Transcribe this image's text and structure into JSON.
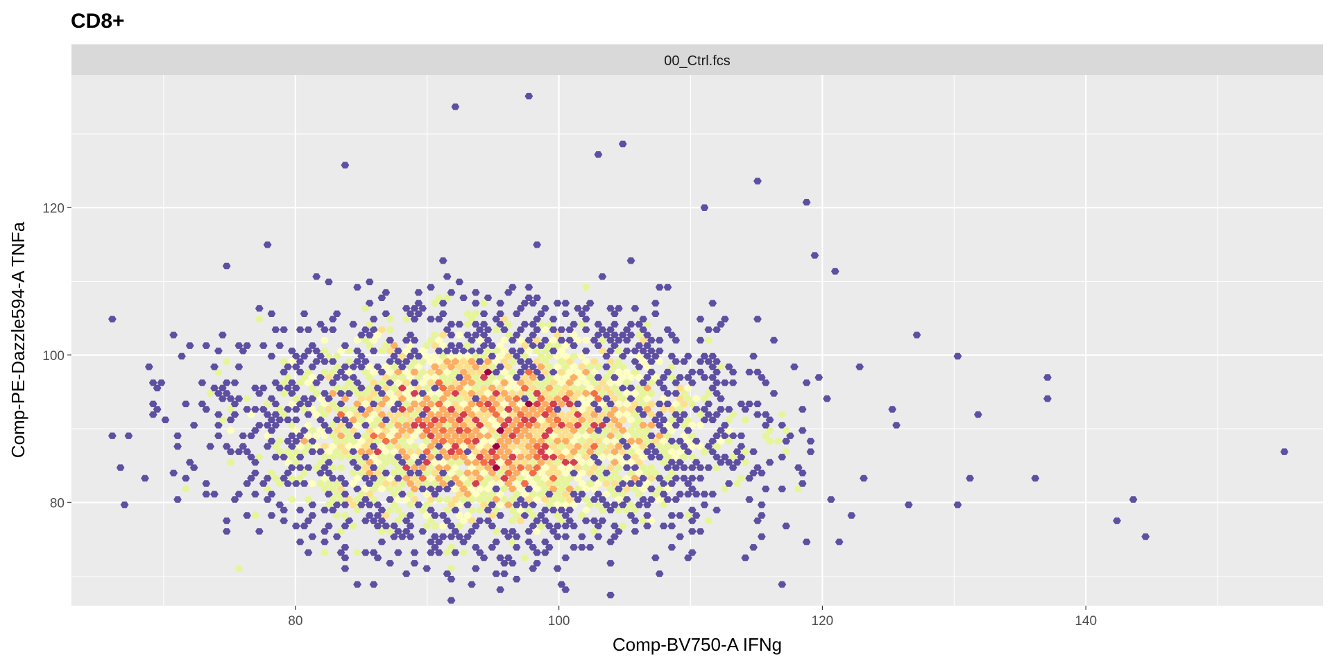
{
  "chart_data": {
    "type": "heatmap",
    "subtype": "hexbin",
    "title": "CD8+",
    "facet_label": "00_Ctrl.fcs",
    "xlabel": "Comp-BV750-A IFNg",
    "ylabel": "Comp-PE-Dazzle594-A TNFa",
    "xlim": [
      63,
      158
    ],
    "ylim": [
      66,
      138
    ],
    "x_ticks": [
      80,
      100,
      120,
      140
    ],
    "y_ticks": [
      80,
      100,
      120
    ],
    "x_tick_labels": [
      "80",
      "100",
      "120",
      "140"
    ],
    "y_tick_labels": [
      "80",
      "100",
      "120"
    ],
    "grid": true,
    "background": "#ebebeb",
    "strip_background": "#d9d9d9",
    "palette_low_to_high": [
      "#5e4fa2",
      "#66c2a5",
      "#abdda4",
      "#e6f598",
      "#ffffbf",
      "#fee08b",
      "#fdae61",
      "#f46d43",
      "#d53e4f",
      "#9e0142"
    ],
    "distribution": {
      "center_x": 95,
      "center_y": 90,
      "sd_x": 8.5,
      "sd_y": 7,
      "points": 5200
    },
    "outlier_points": [
      [
        66,
        89
      ],
      [
        67,
        84.5
      ],
      [
        69.5,
        93
      ],
      [
        70.5,
        103
      ],
      [
        71.5,
        99.5
      ],
      [
        74,
        98.5
      ],
      [
        75.5,
        71
      ],
      [
        83.5,
        125.5
      ],
      [
        92,
        134
      ],
      [
        98,
        135
      ],
      [
        103,
        127
      ],
      [
        105,
        128.5
      ],
      [
        115,
        123.5
      ],
      [
        118.5,
        120.5
      ],
      [
        119.5,
        113.5
      ],
      [
        121,
        111
      ],
      [
        127,
        103
      ],
      [
        130.5,
        99.5
      ],
      [
        132,
        92
      ],
      [
        136,
        83
      ],
      [
        137,
        97
      ],
      [
        137,
        94
      ],
      [
        142.5,
        77.5
      ],
      [
        143.5,
        80.5
      ],
      [
        144.5,
        75
      ],
      [
        155,
        87
      ],
      [
        126.5,
        79.5
      ],
      [
        130,
        79.5
      ],
      [
        121.5,
        74.5
      ],
      [
        117.5,
        77
      ],
      [
        109.5,
        72.5
      ],
      [
        104,
        67.5
      ],
      [
        97,
        69.5
      ],
      [
        95,
        70
      ],
      [
        92,
        71
      ],
      [
        90,
        73
      ],
      [
        83.5,
        72.5
      ],
      [
        82,
        74.5
      ],
      [
        84.5,
        76.5
      ]
    ]
  }
}
